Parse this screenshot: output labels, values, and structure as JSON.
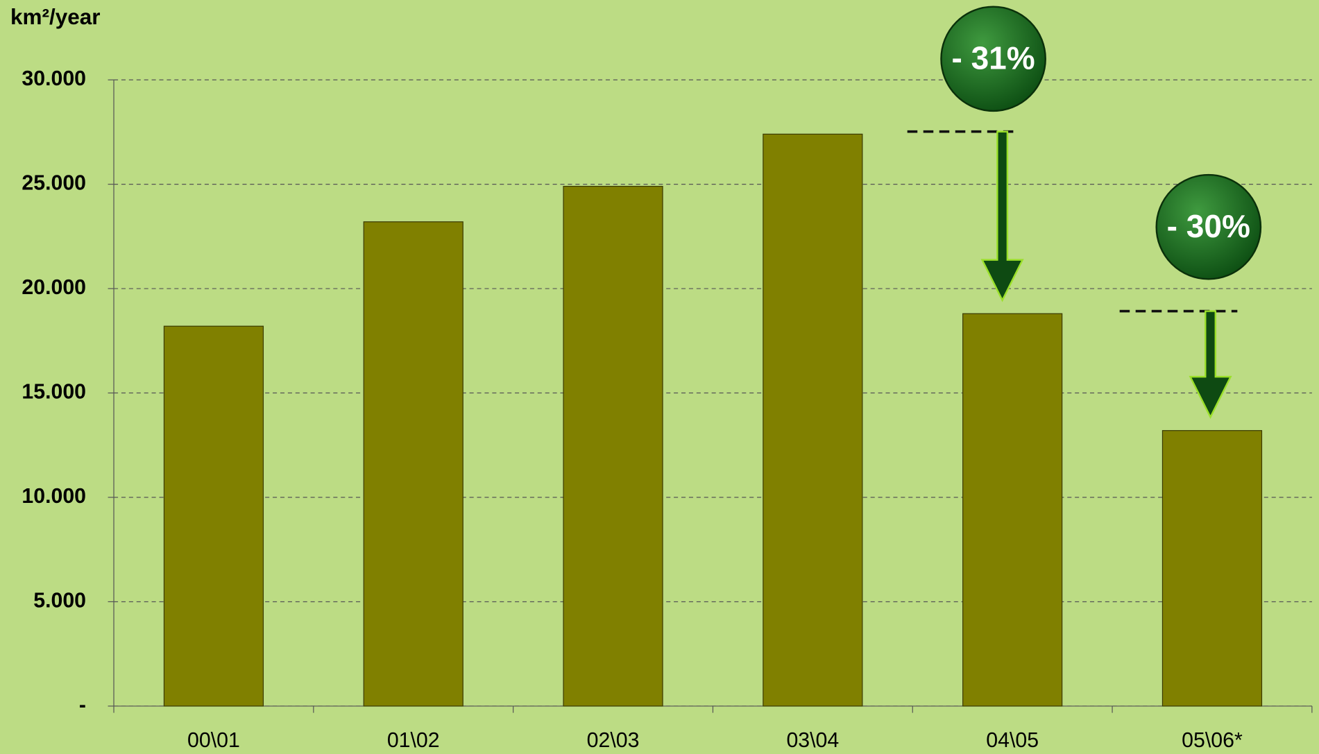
{
  "chart_data": {
    "type": "bar",
    "y_axis_label": "km²/year",
    "categories": [
      "00\\01",
      "01\\02",
      "02\\03",
      "03\\04",
      "04\\05",
      "05\\06*"
    ],
    "values": [
      18200,
      23200,
      24900,
      27400,
      18800,
      13200
    ],
    "color": "#808000",
    "ylim": [
      0,
      30000
    ],
    "yticks": [
      {
        "value": 0,
        "label": "-"
      },
      {
        "value": 5000,
        "label": "5.000"
      },
      {
        "value": 10000,
        "label": "10.000"
      },
      {
        "value": 15000,
        "label": "15.000"
      },
      {
        "value": 20000,
        "label": "20.000"
      },
      {
        "value": 25000,
        "label": "25.000"
      },
      {
        "value": 30000,
        "label": "30.000"
      }
    ],
    "grid": true,
    "annotations": [
      "- 31%",
      "- 30%"
    ]
  }
}
